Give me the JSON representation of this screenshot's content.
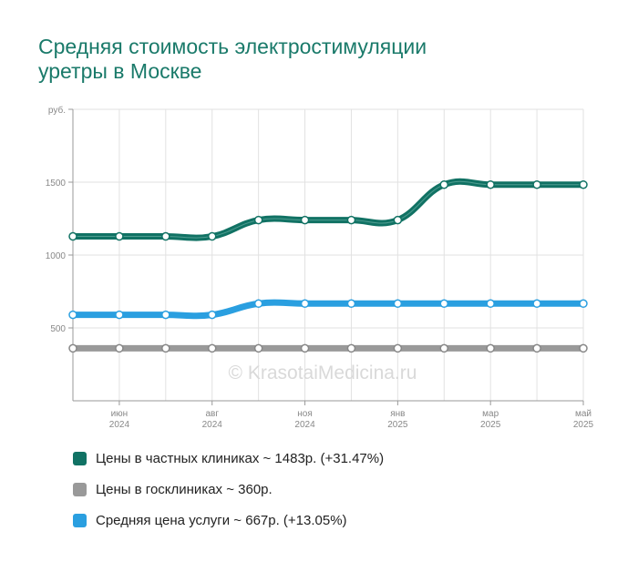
{
  "title": {
    "line1": "Средняя стоимость электростимуляции",
    "line2": "уретры в Москве"
  },
  "watermark": "© KrasotaiMedicina.ru",
  "legend": [
    {
      "label": "Цены в частных клиниках ~ 1483р. (+31.47%)",
      "color": "#117264"
    },
    {
      "label": "Цены в госклиниках ~ 360р.",
      "color": "#999999"
    },
    {
      "label": "Средняя цена услуги ~ 667р. (+13.05%)",
      "color": "#2a9fe0"
    }
  ],
  "chart_data": {
    "type": "line",
    "ylabel": "руб.",
    "ylim": [
      0,
      2000
    ],
    "yticks": [
      "500",
      "1000",
      "1500"
    ],
    "xticks": [
      {
        "index": 1,
        "month": "июн",
        "year": "2024"
      },
      {
        "index": 3,
        "month": "авг",
        "year": "2024"
      },
      {
        "index": 5,
        "month": "ноя",
        "year": "2024"
      },
      {
        "index": 7,
        "month": "янв",
        "year": "2025"
      },
      {
        "index": 9,
        "month": "мар",
        "year": "2025"
      },
      {
        "index": 11,
        "month": "май",
        "year": "2025"
      }
    ],
    "series": [
      {
        "name": "Цены в частных клиниках",
        "color": "#117264",
        "values": [
          1128,
          1128,
          1128,
          1128,
          1240,
          1240,
          1240,
          1240,
          1483,
          1483,
          1483,
          1483
        ]
      },
      {
        "name": "Цены в госклиниках",
        "color": "#999999",
        "values": [
          360,
          360,
          360,
          360,
          360,
          360,
          360,
          360,
          360,
          360,
          360,
          360
        ]
      },
      {
        "name": "Средняя цена услуги",
        "color": "#2a9fe0",
        "values": [
          590,
          590,
          590,
          590,
          667,
          667,
          667,
          667,
          667,
          667,
          667,
          667
        ]
      }
    ],
    "grid": true
  }
}
